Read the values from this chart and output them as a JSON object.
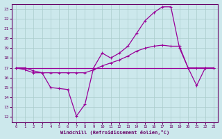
{
  "xlabel": "Windchill (Refroidissement éolien,°C)",
  "xlim": [
    -0.5,
    23.5
  ],
  "ylim": [
    11.5,
    23.5
  ],
  "xticks": [
    0,
    1,
    2,
    3,
    4,
    5,
    6,
    7,
    8,
    9,
    10,
    11,
    12,
    13,
    14,
    15,
    16,
    17,
    18,
    19,
    20,
    21,
    22,
    23
  ],
  "yticks": [
    12,
    13,
    14,
    15,
    16,
    17,
    18,
    19,
    20,
    21,
    22,
    23
  ],
  "background_color": "#cce8ec",
  "line_color": "#990099",
  "grid_color": "#aacccc",
  "line1_x": [
    0,
    1,
    2,
    3,
    4,
    5,
    6,
    7,
    8,
    9,
    10,
    11,
    12,
    13,
    14,
    15,
    16,
    17,
    18,
    19,
    20,
    21,
    22,
    23
  ],
  "line1_y": [
    17.0,
    17.0,
    16.7,
    16.5,
    15.0,
    14.9,
    14.8,
    12.1,
    13.3,
    17.0,
    18.5,
    18.0,
    18.5,
    19.2,
    20.5,
    21.8,
    22.6,
    23.2,
    23.2,
    19.0,
    17.0,
    15.2,
    17.0,
    17.0
  ],
  "line2_x": [
    0,
    1,
    2,
    3,
    4,
    5,
    6,
    7,
    8,
    9,
    10,
    11,
    12,
    13,
    14,
    15,
    16,
    17,
    18,
    19,
    20,
    21,
    22,
    23
  ],
  "line2_y": [
    17.0,
    17.0,
    17.0,
    17.0,
    17.0,
    17.0,
    17.0,
    17.0,
    17.0,
    17.0,
    17.0,
    17.0,
    17.0,
    17.0,
    17.0,
    17.0,
    17.0,
    17.0,
    17.0,
    17.0,
    17.0,
    17.0,
    17.0,
    17.0
  ],
  "line3_x": [
    0,
    1,
    2,
    3,
    4,
    5,
    6,
    7,
    8,
    9,
    10,
    11,
    12,
    13,
    14,
    15,
    16,
    17,
    18,
    19,
    20,
    21,
    22,
    23
  ],
  "line3_y": [
    17.0,
    16.8,
    16.5,
    16.5,
    16.5,
    16.5,
    16.5,
    16.5,
    16.5,
    16.8,
    17.2,
    17.5,
    17.8,
    18.2,
    18.7,
    19.0,
    19.2,
    19.3,
    19.2,
    19.2,
    17.0,
    17.0,
    17.0,
    17.0
  ]
}
